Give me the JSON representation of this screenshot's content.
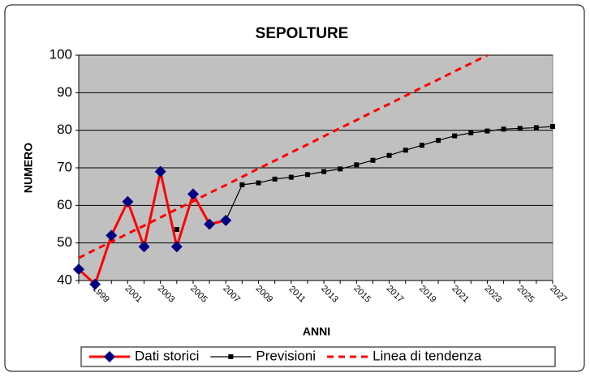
{
  "chart_data": {
    "type": "line",
    "title": "SEPOLTURE",
    "xlabel": "ANNI",
    "ylabel": "NUMERO",
    "categories": [
      null,
      "1999",
      null,
      "2001",
      null,
      "2003",
      null,
      "2005",
      null,
      "2007",
      null,
      "2009",
      null,
      "2011",
      null,
      "2013",
      null,
      "2015",
      null,
      "2017",
      null,
      "2019",
      null,
      "2021",
      null,
      "2023",
      null,
      "2025",
      null,
      "2027"
    ],
    "series": [
      {
        "name": "Dati storici",
        "color": "#ff0000",
        "marker": "diamond",
        "marker_color": "#000080",
        "style": "solid",
        "values": [
          43,
          39,
          52,
          61,
          49,
          69,
          49,
          63,
          55,
          56,
          null,
          null,
          null,
          null,
          null,
          null,
          null,
          null,
          null,
          null,
          null,
          null,
          null,
          null,
          null,
          null,
          null,
          null,
          null,
          null
        ]
      },
      {
        "name": "Previsioni",
        "color": "#000000",
        "marker": "square",
        "marker_color": "#000000",
        "style": "solid",
        "values": [
          null,
          null,
          null,
          null,
          null,
          null,
          53.6,
          null,
          null,
          56,
          65.5,
          66,
          67,
          67.5,
          68.2,
          69,
          69.7,
          70.8,
          72,
          73.3,
          74.7,
          76,
          77.3,
          78.5,
          79.3,
          79.8,
          80.3,
          80.5,
          80.7,
          81
        ]
      },
      {
        "name": "Linea di tendenza",
        "color": "#ff0000",
        "marker": null,
        "style": "dashed",
        "values": [
          46,
          48.2,
          50.3,
          52.5,
          54.6,
          56.8,
          59,
          61.1,
          63.3,
          65.4,
          67.6,
          69.8,
          71.9,
          74.1,
          76.2,
          78.4,
          80.6,
          82.7,
          84.9,
          87,
          89.2,
          91.4,
          93.5,
          95.7,
          97.8,
          100,
          null,
          null,
          null,
          null
        ]
      }
    ],
    "ylim": [
      40,
      100
    ],
    "yticks": [
      40,
      50,
      60,
      70,
      80,
      90,
      100
    ],
    "grid": true,
    "plot_bg": "#c0c0c0",
    "legend": "bottom"
  }
}
